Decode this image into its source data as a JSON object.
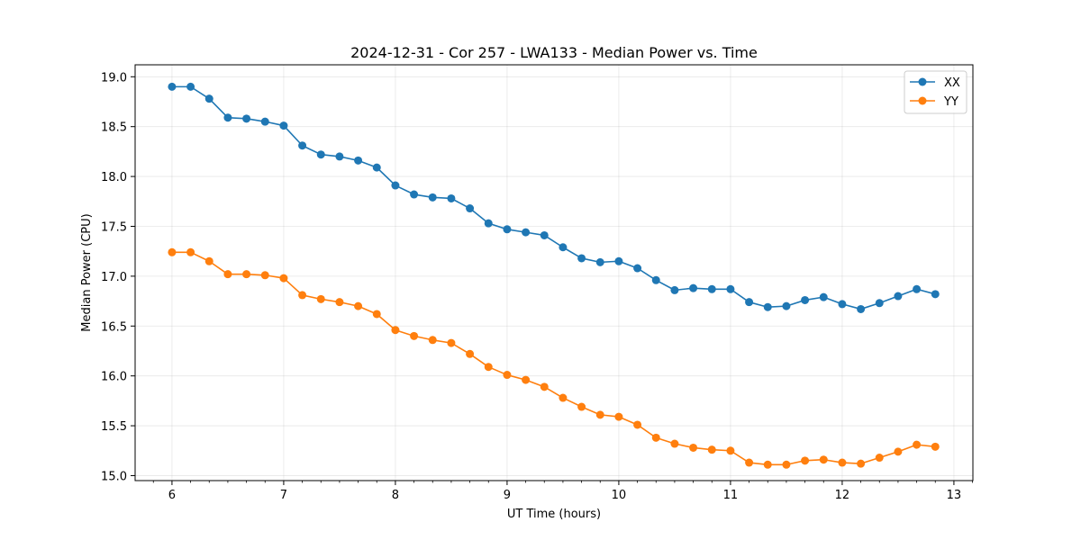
{
  "chart_data": {
    "type": "line",
    "title": "2024-12-31 - Cor 257 - LWA133 - Median Power vs. Time",
    "xlabel": "UT Time (hours)",
    "ylabel": "Median Power (CPU)",
    "xlim": [
      5.67,
      13.17
    ],
    "ylim": [
      14.95,
      19.12
    ],
    "xticks": [
      6,
      7,
      8,
      9,
      10,
      11,
      12,
      13
    ],
    "xtick_labels": [
      "6",
      "7",
      "8",
      "9",
      "10",
      "11",
      "12",
      "13"
    ],
    "yticks": [
      15.0,
      15.5,
      16.0,
      16.5,
      17.0,
      17.5,
      18.0,
      18.5,
      19.0
    ],
    "ytick_labels": [
      "15.0",
      "15.5",
      "16.0",
      "16.5",
      "17.0",
      "17.5",
      "18.0",
      "18.5",
      "19.0"
    ],
    "grid": true,
    "legend_position": "top-right",
    "x": [
      6.0,
      6.1667,
      6.3333,
      6.5,
      6.6667,
      6.8333,
      7.0,
      7.1667,
      7.3333,
      7.5,
      7.6667,
      7.8333,
      8.0,
      8.1667,
      8.3333,
      8.5,
      8.6667,
      8.8333,
      9.0,
      9.1667,
      9.3333,
      9.5,
      9.6667,
      9.8333,
      10.0,
      10.1667,
      10.3333,
      10.5,
      10.6667,
      10.8333,
      11.0,
      11.1667,
      11.3333,
      11.5,
      11.6667,
      11.8333,
      12.0,
      12.1667,
      12.3333,
      12.5,
      12.6667,
      12.8333
    ],
    "series": [
      {
        "name": "XX",
        "color": "#1f77b4",
        "values": [
          18.9,
          18.9,
          18.78,
          18.59,
          18.58,
          18.55,
          18.51,
          18.31,
          18.22,
          18.2,
          18.16,
          18.09,
          17.91,
          17.82,
          17.79,
          17.78,
          17.68,
          17.53,
          17.47,
          17.44,
          17.41,
          17.29,
          17.18,
          17.14,
          17.15,
          17.08,
          16.96,
          16.86,
          16.88,
          16.87,
          16.87,
          16.74,
          16.69,
          16.7,
          16.76,
          16.79,
          16.72,
          16.67,
          16.73,
          16.8,
          16.87,
          16.82
        ]
      },
      {
        "name": "YY",
        "color": "#ff7f0e",
        "values": [
          17.24,
          17.24,
          17.15,
          17.02,
          17.02,
          17.01,
          16.98,
          16.81,
          16.77,
          16.74,
          16.7,
          16.62,
          16.46,
          16.4,
          16.36,
          16.33,
          16.22,
          16.09,
          16.01,
          15.96,
          15.89,
          15.78,
          15.69,
          15.61,
          15.59,
          15.51,
          15.38,
          15.32,
          15.28,
          15.26,
          15.25,
          15.13,
          15.11,
          15.11,
          15.15,
          15.16,
          15.13,
          15.12,
          15.18,
          15.24,
          15.31,
          15.29
        ]
      }
    ]
  }
}
